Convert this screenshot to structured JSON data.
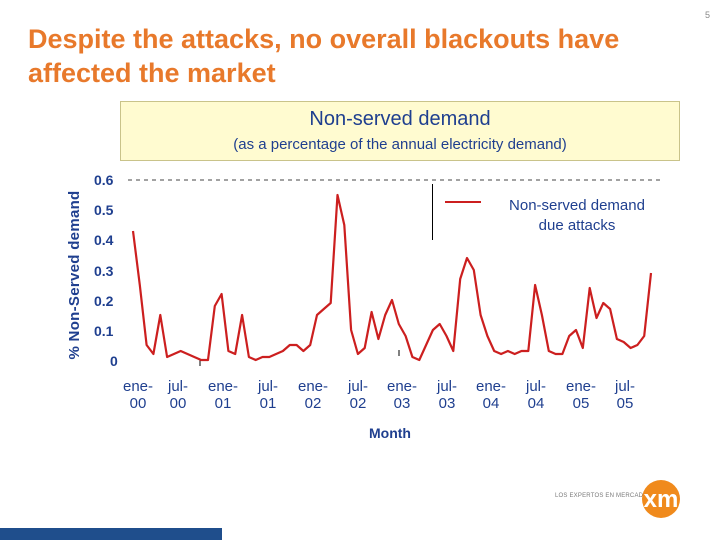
{
  "slide": {
    "title": "Despite the attacks, no overall blackouts have affected the market",
    "page_number": "5"
  },
  "chart_data": {
    "type": "line",
    "title": "Non-served demand",
    "subtitle": "(as a percentage of the annual electricity demand)",
    "ylabel": "% Non-Served demand",
    "xlabel": "Month",
    "ylim": [
      0,
      0.6
    ],
    "yticks": [
      "0",
      "0.1",
      "0.2",
      "0.3",
      "0.4",
      "0.5",
      "0.6"
    ],
    "xtick_labels": [
      [
        "ene-",
        "00"
      ],
      [
        "jul-",
        "00"
      ],
      [
        "ene-",
        "01"
      ],
      [
        "jul-",
        "01"
      ],
      [
        "ene-",
        "02"
      ],
      [
        "jul-",
        "02"
      ],
      [
        "ene-",
        "03"
      ],
      [
        "jul-",
        "03"
      ],
      [
        "ene-",
        "04"
      ],
      [
        "jul-",
        "04"
      ],
      [
        "ene-",
        "05"
      ],
      [
        "jul-",
        "05"
      ]
    ],
    "legend": [
      "Non-served demand",
      "due attacks"
    ],
    "series": [
      {
        "name": "Non-served demand due attacks",
        "color": "#cc1f1f",
        "values": [
          0.43,
          0.25,
          0.05,
          0.02,
          0.15,
          0.01,
          0.02,
          0.03,
          0.02,
          0.01,
          0.0,
          0.0,
          0.18,
          0.22,
          0.03,
          0.02,
          0.15,
          0.01,
          0.0,
          0.01,
          0.01,
          0.02,
          0.03,
          0.05,
          0.05,
          0.03,
          0.05,
          0.15,
          0.17,
          0.19,
          0.55,
          0.45,
          0.1,
          0.02,
          0.04,
          0.16,
          0.07,
          0.15,
          0.2,
          0.12,
          0.08,
          0.01,
          0.0,
          0.05,
          0.1,
          0.12,
          0.08,
          0.03,
          0.27,
          0.34,
          0.3,
          0.15,
          0.08,
          0.03,
          0.02,
          0.03,
          0.02,
          0.03,
          0.03,
          0.25,
          0.15,
          0.03,
          0.02,
          0.02,
          0.08,
          0.1,
          0.04,
          0.24,
          0.14,
          0.19,
          0.17,
          0.07,
          0.06,
          0.04,
          0.05,
          0.08,
          0.29
        ]
      }
    ]
  },
  "logo": {
    "tagline": "LOS EXPERTOS EN MERCADOS",
    "mark": "xm"
  }
}
